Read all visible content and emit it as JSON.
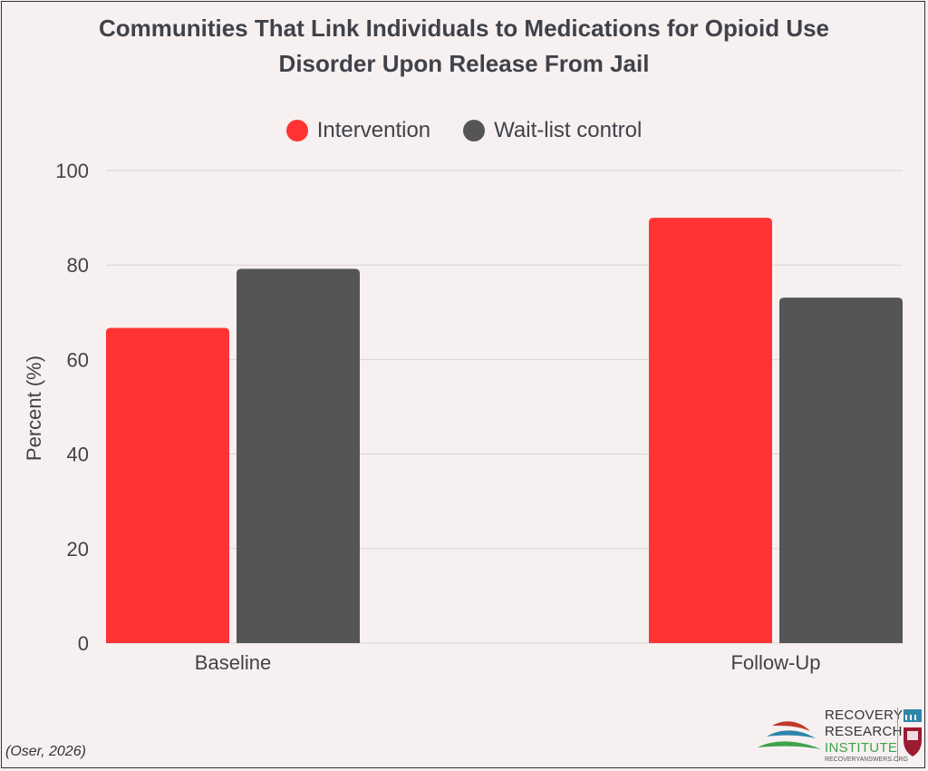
{
  "title_line1": "Communities That Link Individuals to Medications for Opioid Use",
  "title_line2": "Disorder Upon Release From Jail",
  "citation": "(Oser, 2026)",
  "logo": {
    "line1": "RECOVERY",
    "line2": "RESEARCH",
    "line3": "INSTITUTE",
    "url": "RECOVERYANSWERS.ORG"
  },
  "colors": {
    "intervention": "#ff3333",
    "control": "#555555",
    "text": "#40424a",
    "grid": "#d9d4d4"
  },
  "chart_data": {
    "type": "bar",
    "title": "Communities That Link Individuals to Medications for Opioid Use Disorder Upon Release From Jail",
    "xlabel": "",
    "ylabel": "Percent (%)",
    "ylim": [
      0,
      100
    ],
    "yticks": [
      0,
      20,
      40,
      60,
      80,
      100
    ],
    "grid": true,
    "legend_position": "top-center",
    "categories": [
      "Baseline",
      "Follow-Up"
    ],
    "series": [
      {
        "name": "Intervention",
        "values": [
          66.7,
          90.0
        ]
      },
      {
        "name": "Wait-list control",
        "values": [
          79.2,
          73.1
        ]
      }
    ]
  }
}
